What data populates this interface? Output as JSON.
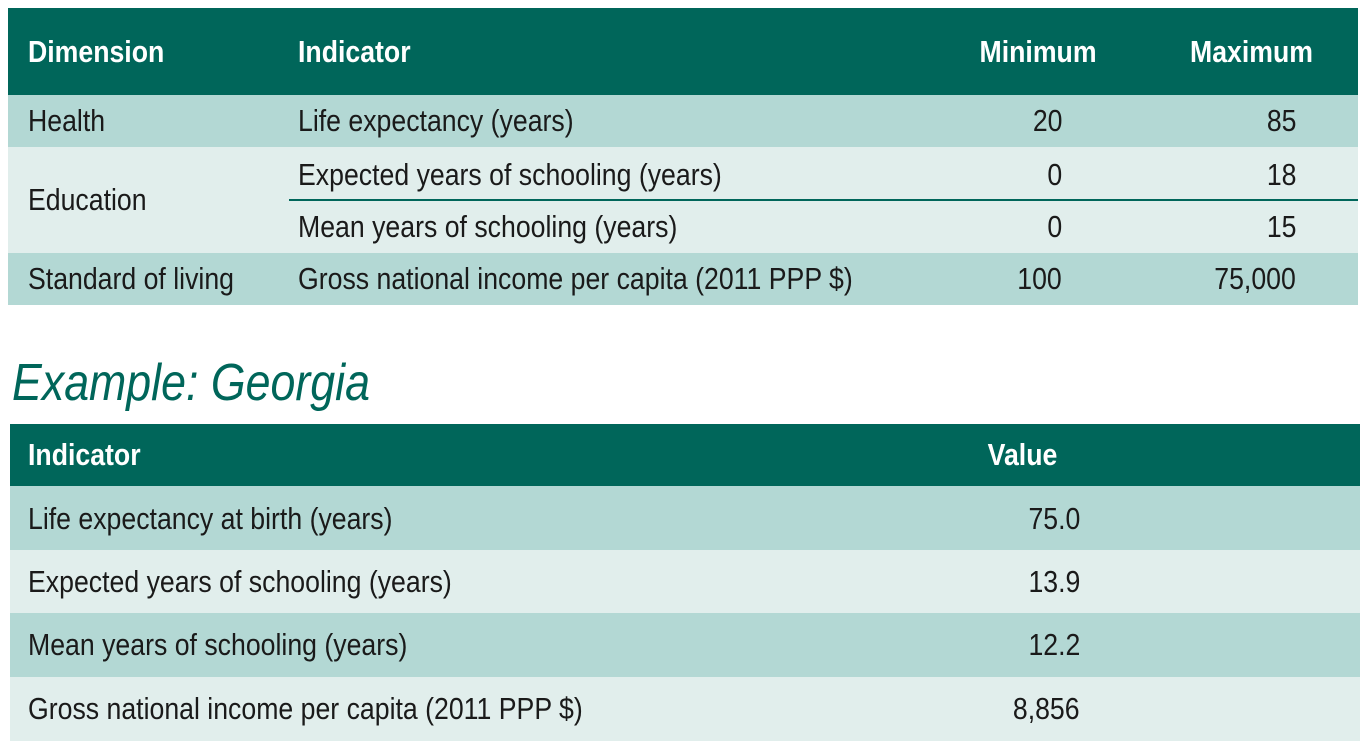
{
  "goalposts": {
    "headers": {
      "dimension": "Dimension",
      "indicator": "Indicator",
      "minimum": "Minimum",
      "maximum": "Maximum"
    },
    "rows": [
      {
        "dimension": "Health",
        "indicator": "Life expectancy (years)",
        "minimum": "20",
        "maximum": "85"
      },
      {
        "dimension": "Education",
        "indicator": "Expected years of schooling (years)",
        "minimum": "0",
        "maximum": "18"
      },
      {
        "dimension": "",
        "indicator": "Mean years of schooling (years)",
        "minimum": "0",
        "maximum": "15"
      },
      {
        "dimension": "Standard of living",
        "indicator": "Gross national income per capita (2011 PPP $)",
        "minimum": "100",
        "maximum": "75,000"
      }
    ]
  },
  "example": {
    "title": "Example: Georgia",
    "headers": {
      "indicator": "Indicator",
      "value": "Value"
    },
    "rows": [
      {
        "indicator": "Life expectancy at birth (years)",
        "value": "75.0"
      },
      {
        "indicator": "Expected years of schooling (years)",
        "value": "13.9"
      },
      {
        "indicator": "Mean years of schooling (years)",
        "value": "12.2"
      },
      {
        "indicator": "Gross national income per capita (2011 PPP $)",
        "value": "8,856"
      }
    ]
  },
  "colors": {
    "header": "#00665a",
    "band_dark": "#b3d8d4",
    "band_light": "#e1eeec",
    "title": "#00665a"
  }
}
